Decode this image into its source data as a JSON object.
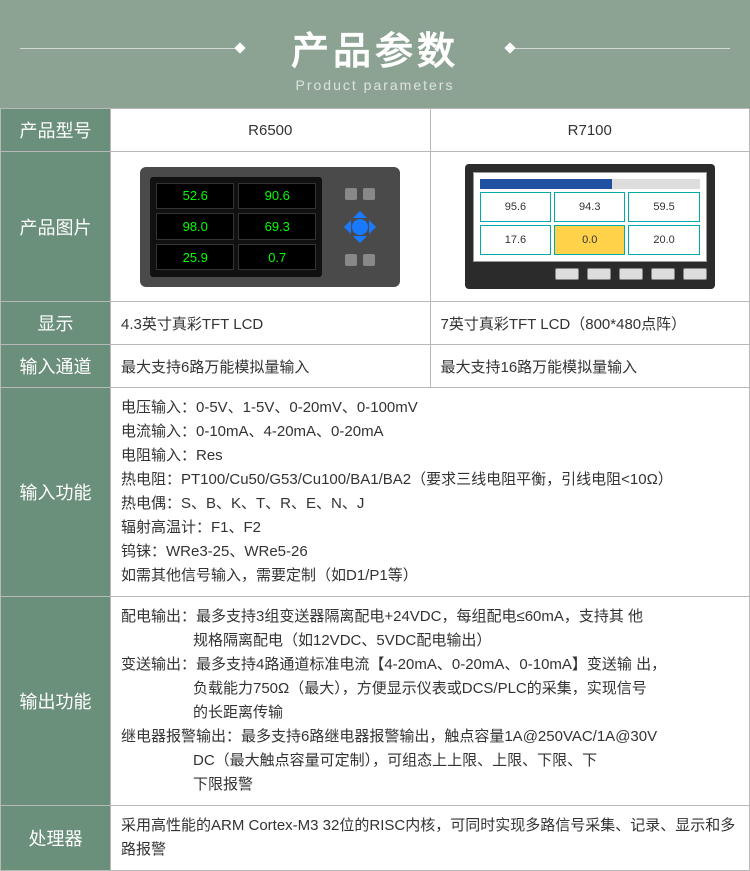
{
  "header": {
    "title_cn": "产品参数",
    "title_en": "Product parameters"
  },
  "colors": {
    "page_bg": "#8ca393",
    "header_cell_bg": "#6a8f7a",
    "header_cell_text": "#ffffff",
    "border": "#b8b8b8",
    "device_a_body": "#4a4a4a",
    "device_a_screen": "#111111",
    "reading_a_text": "#00ff00",
    "dpad_color": "#1a7aff",
    "device_b_body": "#2b2b2b",
    "reading_b_border": "#00aaaa"
  },
  "columns": {
    "model": "产品型号",
    "image": "产品图片",
    "display": "显示",
    "input_channels": "输入通道",
    "input_func": "输入功能",
    "output_func": "输出功能",
    "processor": "处理器"
  },
  "models": {
    "a": "R6500",
    "b": "R7100"
  },
  "device_a_readings": [
    "52.6",
    "90.6",
    "98.0",
    "69.3",
    "25.9",
    "0.7"
  ],
  "device_b_readings": [
    "95.6",
    "94.3",
    "59.5",
    "17.6",
    "0.0",
    "20.0"
  ],
  "display_row": {
    "a": "4.3英寸真彩TFT  LCD",
    "b": "7英寸真彩TFT LCD（800*480点阵）"
  },
  "input_channels_row": {
    "a": "最大支持6路万能模拟量输入",
    "b": "最大支持16路万能模拟量输入"
  },
  "input_func_lines": [
    "电压输入：0-5V、1-5V、0-20mV、0-100mV",
    "电流输入：0-10mA、4-20mA、0-20mA",
    "电阻输入：Res",
    "热电阻：PT100/Cu50/G53/Cu100/BA1/BA2（要求三线电阻平衡，引线电阻<10Ω）",
    "热电偶：S、B、K、T、R、E、N、J",
    "辐射高温计：F1、F2",
    "钨铼：WRe3-25、WRe5-26",
    "如需其他信号输入，需要定制（如D1/P1等）"
  ],
  "output_func_lines": [
    "配电输出：最多支持3组变送器隔离配电+24VDC，每组配电≤60mA，支持其 他",
    "规格隔离配电（如12VDC、5VDC配电输出）",
    "变送输出：最多支持4路通道标准电流【4-20mA、0-20mA、0-10mA】变送输 出，",
    "负载能力750Ω（最大），方便显示仪表或DCS/PLC的采集，实现信号",
    "的长距离传输",
    "继电器报警输出：最多支持6路继电器报警输出，触点容量1A@250VAC/1A@30V",
    "DC（最大触点容量可定制），可组态上上限、上限、下限、下",
    "下限报警"
  ],
  "output_indent_flags": [
    false,
    true,
    false,
    true,
    true,
    false,
    true,
    true
  ],
  "processor_text": "采用高性能的ARM Cortex-M3 32位的RISC内核，可同时实现多路信号采集、记录、显示和多路报警"
}
